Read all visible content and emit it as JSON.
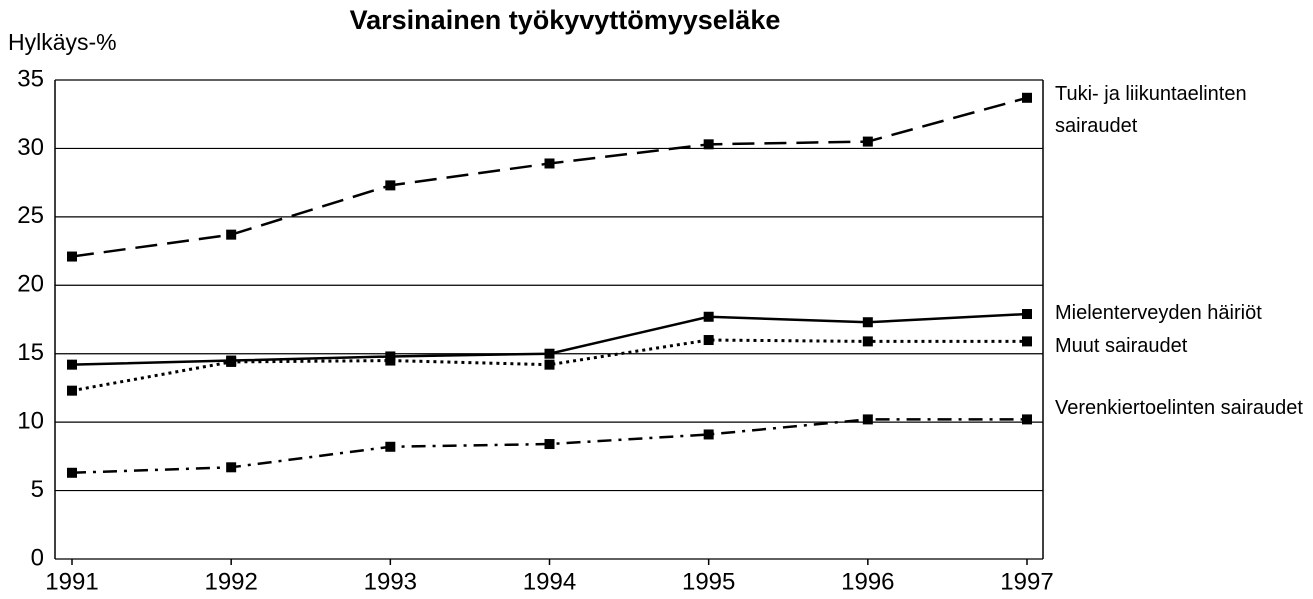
{
  "chart_data": {
    "type": "line",
    "title": "Varsinainen työkyvyttömyyseläke",
    "y_label": "Hylkäys-%",
    "categories": [
      "1991",
      "1992",
      "1993",
      "1994",
      "1995",
      "1996",
      "1997"
    ],
    "series": [
      {
        "name": "Tuki- ja liikuntaelinten sairaudet",
        "color": "#000000",
        "style": "dashed",
        "values": [
          22.1,
          23.7,
          27.3,
          28.9,
          30.3,
          30.5,
          33.7
        ]
      },
      {
        "name": "Mielenterveyden häiriöt",
        "color": "#000000",
        "style": "solid",
        "values": [
          14.2,
          14.5,
          14.8,
          15.0,
          17.7,
          17.3,
          17.9
        ]
      },
      {
        "name": "Muut sairaudet",
        "color": "#000000",
        "style": "dotted",
        "values": [
          12.3,
          14.4,
          14.5,
          14.2,
          16.0,
          15.9,
          15.9
        ]
      },
      {
        "name": "Verenkiertoelinten sairaudet",
        "color": "#000000",
        "style": "dashdot",
        "values": [
          6.3,
          6.7,
          8.2,
          8.4,
          9.1,
          10.2,
          10.2
        ]
      }
    ],
    "ylim": [
      0,
      35
    ],
    "yticks": [
      0,
      5,
      10,
      15,
      20,
      25,
      30,
      35
    ],
    "grid": true
  }
}
